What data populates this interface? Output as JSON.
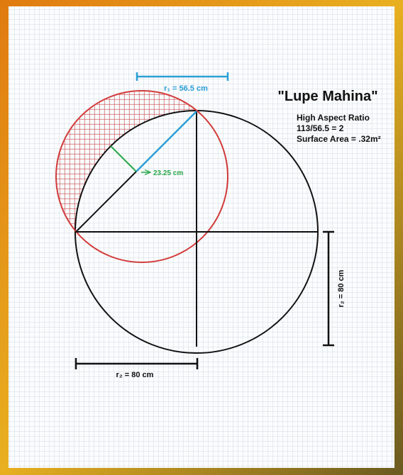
{
  "diagram": {
    "radius_1_label": "r₁ = 56.5 cm",
    "title": "\"Lupe Mahina\"",
    "notes": [
      "High Aspect Ratio",
      "113/56.5 = 2",
      "Surface Area = .32m²"
    ],
    "perpendicular_label": "23.25 cm",
    "radius_2_vertical_label": "r₂ = 80 cm",
    "radius_2_horizontal_label": "r₂ = 80 cm"
  }
}
